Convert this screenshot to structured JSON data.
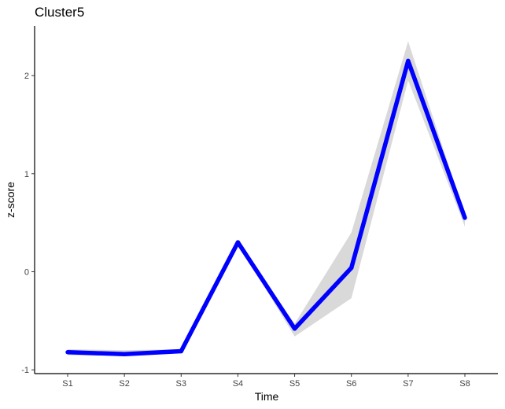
{
  "chart_data": {
    "type": "line",
    "title": "Cluster5",
    "xlabel": "Time",
    "ylabel": "z-score",
    "categories": [
      "S1",
      "S2",
      "S3",
      "S4",
      "S5",
      "S6",
      "S7",
      "S8"
    ],
    "y_ticks": [
      -1,
      0,
      1,
      2
    ],
    "ylim": [
      -1.02,
      2.5
    ],
    "grid": false,
    "series": [
      {
        "values": [
          -0.82,
          -0.84,
          -0.81,
          0.3,
          -0.58,
          0.04,
          2.15,
          0.55
        ],
        "ribbon_upper": [
          -0.79,
          -0.8,
          -0.79,
          0.31,
          -0.53,
          0.4,
          2.35,
          0.58
        ],
        "ribbon_lower": [
          -0.85,
          -0.86,
          -0.83,
          0.29,
          -0.66,
          -0.27,
          1.95,
          0.46
        ],
        "line_color": "#0000ff",
        "ribbon_color": "#d9d9d9"
      }
    ]
  }
}
